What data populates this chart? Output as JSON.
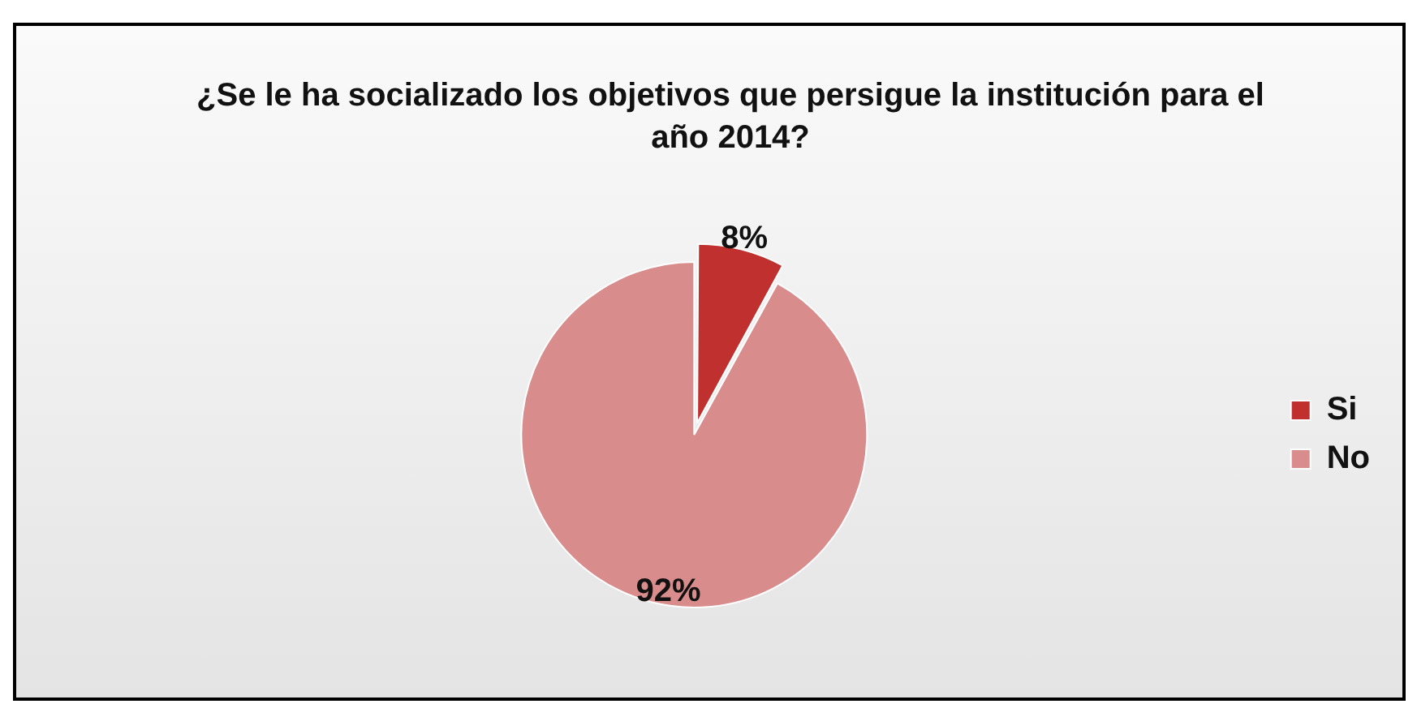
{
  "chart_data": {
    "type": "pie",
    "title": "¿Se le ha socializado los objetivos que persigue la institución para el año 2014?",
    "categories": [
      "Si",
      "No"
    ],
    "values": [
      8,
      92
    ],
    "colors": [
      "#c0302f",
      "#d98c8c"
    ],
    "value_labels": [
      "8%",
      "92%"
    ],
    "legend": "right"
  }
}
